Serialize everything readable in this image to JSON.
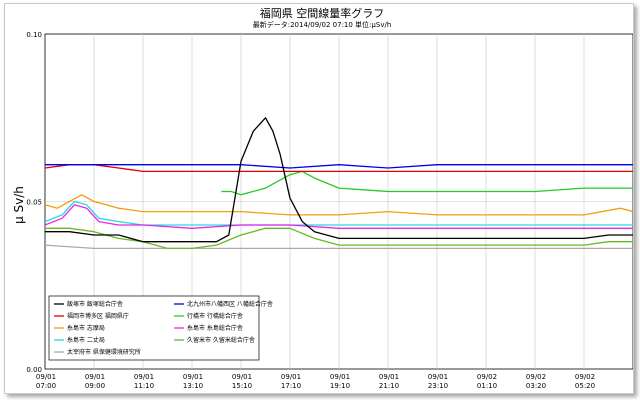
{
  "chart_data": {
    "type": "line",
    "title": "福岡県 空間線量率グラフ",
    "subtitle": "最新データ:2014/09/02 07:10 単位:μSv/h",
    "ylabel": "μ Sv/h",
    "ylim": [
      0.0,
      0.1
    ],
    "yticks": [
      "0.00",
      "0.05",
      "0.10"
    ],
    "grid": true,
    "legend_position": "bottom-left",
    "xlim_hours": [
      0,
      24
    ],
    "xticks": [
      {
        "date": "09/01",
        "time": "07:00"
      },
      {
        "date": "09/01",
        "time": "09:00"
      },
      {
        "date": "09/01",
        "time": "11:10"
      },
      {
        "date": "09/01",
        "time": "13:10"
      },
      {
        "date": "09/01",
        "time": "15:10"
      },
      {
        "date": "09/01",
        "time": "17:10"
      },
      {
        "date": "09/01",
        "time": "19:10"
      },
      {
        "date": "09/01",
        "time": "21:10"
      },
      {
        "date": "09/01",
        "time": "23:10"
      },
      {
        "date": "09/02",
        "time": "01:10"
      },
      {
        "date": "09/02",
        "time": "03:20"
      },
      {
        "date": "09/02",
        "time": "05:20"
      }
    ],
    "series": [
      {
        "name": "飯塚市 飯塚総合庁舎",
        "color": "#000000",
        "x": [
          0,
          1.0,
          2.0,
          3.0,
          4.0,
          5.0,
          6.0,
          7.0,
          7.5,
          8.0,
          8.5,
          9.0,
          9.3,
          9.6,
          10.0,
          10.5,
          11.0,
          12.0,
          13.0,
          14.0,
          15.0,
          16.0,
          17.0,
          18.0,
          19.0,
          20.0,
          21.0,
          22.0,
          23.0,
          24.0
        ],
        "y": [
          0.041,
          0.041,
          0.04,
          0.04,
          0.038,
          0.038,
          0.038,
          0.038,
          0.04,
          0.062,
          0.071,
          0.075,
          0.071,
          0.064,
          0.051,
          0.044,
          0.041,
          0.039,
          0.039,
          0.039,
          0.039,
          0.039,
          0.039,
          0.039,
          0.039,
          0.039,
          0.039,
          0.039,
          0.04,
          0.04
        ]
      },
      {
        "name": "北九州市八幡西区 八幡総合庁舎",
        "color": "#0000ee",
        "x": [
          0,
          2,
          4,
          6,
          8,
          10,
          12,
          14,
          16,
          18,
          20,
          22,
          24
        ],
        "y": [
          0.061,
          0.061,
          0.061,
          0.061,
          0.061,
          0.06,
          0.061,
          0.06,
          0.061,
          0.061,
          0.061,
          0.061,
          0.061
        ]
      },
      {
        "name": "福岡市博多区 福岡県庁",
        "color": "#dd0000",
        "x": [
          0,
          1,
          2,
          3,
          4,
          6,
          8,
          10,
          12,
          14,
          16,
          18,
          20,
          22,
          24
        ],
        "y": [
          0.06,
          0.061,
          0.061,
          0.06,
          0.059,
          0.059,
          0.059,
          0.059,
          0.059,
          0.059,
          0.059,
          0.059,
          0.059,
          0.059,
          0.059
        ]
      },
      {
        "name": "行橋市 行橋総合庁舎",
        "color": "#22cc22",
        "x": [
          7.2,
          7.6,
          8.0,
          9.0,
          10.0,
          10.5,
          11.0,
          12.0,
          14.0,
          16.0,
          18.0,
          20.0,
          22.0,
          24.0
        ],
        "y": [
          0.053,
          0.053,
          0.052,
          0.054,
          0.058,
          0.059,
          0.057,
          0.054,
          0.053,
          0.053,
          0.053,
          0.053,
          0.054,
          0.054
        ]
      },
      {
        "name": "糸島市 志摩局",
        "color": "#f39c12",
        "x": [
          0,
          0.5,
          1.0,
          1.5,
          2.0,
          2.5,
          3.0,
          4.0,
          6.0,
          8.0,
          10.0,
          12.0,
          14.0,
          16.0,
          18.0,
          20.0,
          22.0,
          23.5,
          24.0
        ],
        "y": [
          0.049,
          0.048,
          0.05,
          0.052,
          0.05,
          0.049,
          0.048,
          0.047,
          0.047,
          0.047,
          0.046,
          0.046,
          0.047,
          0.046,
          0.046,
          0.046,
          0.046,
          0.048,
          0.047
        ]
      },
      {
        "name": "糸島市 糸島総合庁舎",
        "color": "#ee22ee",
        "x": [
          0,
          0.7,
          1.2,
          1.7,
          2.2,
          3.0,
          4.0,
          6.0,
          8.0,
          10.0,
          12.0,
          14.0,
          16.0,
          18.0,
          20.0,
          22.0,
          24.0
        ],
        "y": [
          0.043,
          0.045,
          0.049,
          0.048,
          0.044,
          0.043,
          0.043,
          0.042,
          0.043,
          0.043,
          0.042,
          0.042,
          0.042,
          0.042,
          0.042,
          0.042,
          0.042
        ]
      },
      {
        "name": "糸島市 二丈局",
        "color": "#22dddd",
        "x": [
          0,
          0.7,
          1.2,
          1.7,
          2.2,
          3.0,
          4.0,
          6.0,
          8.0,
          10.0,
          12.0,
          14.0,
          16.0,
          18.0,
          20.0,
          22.0,
          24.0
        ],
        "y": [
          0.044,
          0.046,
          0.05,
          0.049,
          0.045,
          0.044,
          0.043,
          0.043,
          0.043,
          0.043,
          0.043,
          0.043,
          0.043,
          0.043,
          0.043,
          0.043,
          0.043
        ]
      },
      {
        "name": "久留米市 久留米総合庁舎",
        "color": "#66bb22",
        "x": [
          0,
          1,
          2,
          3,
          4,
          5,
          6,
          7,
          8,
          9,
          10,
          11,
          12,
          13,
          14,
          16,
          18,
          20,
          22,
          23,
          24
        ],
        "y": [
          0.042,
          0.042,
          0.041,
          0.039,
          0.038,
          0.036,
          0.036,
          0.037,
          0.04,
          0.042,
          0.042,
          0.039,
          0.037,
          0.037,
          0.037,
          0.037,
          0.037,
          0.037,
          0.037,
          0.038,
          0.038
        ]
      },
      {
        "name": "太宰府市 県保健環境研究所",
        "color": "#aaaaaa",
        "x": [
          0,
          2,
          4,
          6,
          8,
          10,
          12,
          14,
          16,
          18,
          20,
          22,
          24
        ],
        "y": [
          0.037,
          0.036,
          0.036,
          0.036,
          0.036,
          0.036,
          0.036,
          0.036,
          0.036,
          0.036,
          0.036,
          0.036,
          0.036
        ]
      }
    ]
  }
}
